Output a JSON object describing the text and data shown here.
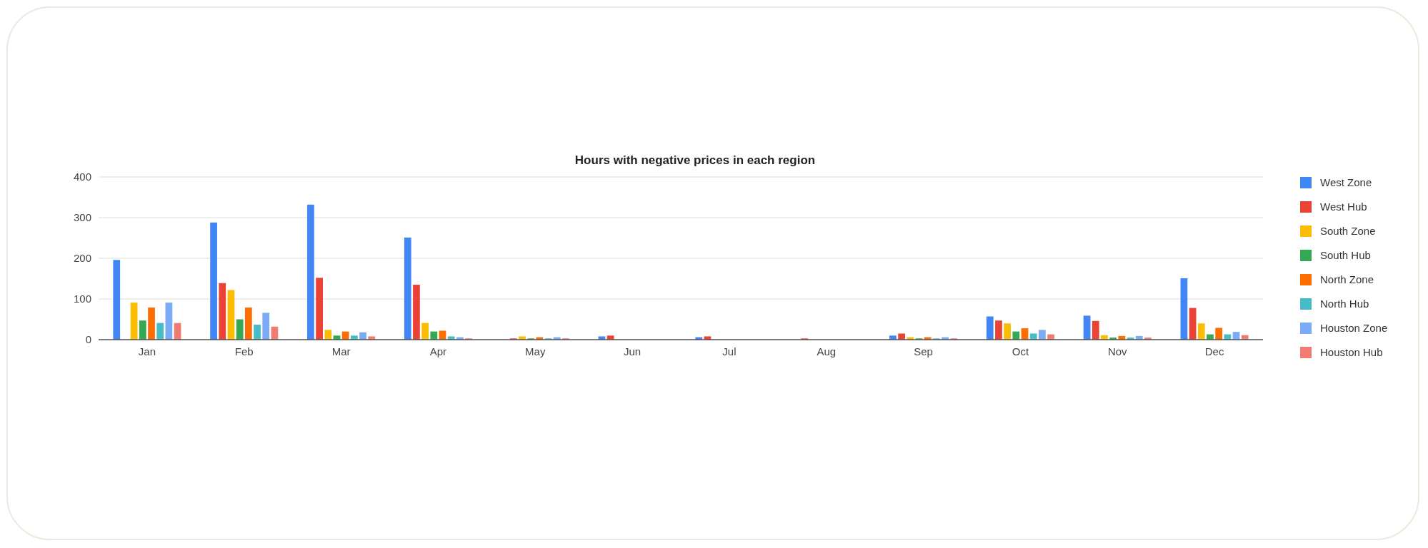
{
  "chart_data": {
    "type": "bar",
    "title": "Hours with negative prices in each region",
    "categories": [
      "Jan",
      "Feb",
      "Mar",
      "Apr",
      "May",
      "Jun",
      "Jul",
      "Aug",
      "Sep",
      "Oct",
      "Nov",
      "Dec"
    ],
    "series": [
      {
        "name": "West Zone",
        "color": "#4285f4",
        "values": [
          196,
          288,
          332,
          251,
          0,
          8,
          6,
          0,
          10,
          57,
          59,
          151
        ]
      },
      {
        "name": "West Hub",
        "color": "#ea4335",
        "values": [
          0,
          139,
          152,
          135,
          3,
          10,
          8,
          3,
          15,
          47,
          46,
          78
        ]
      },
      {
        "name": "South Zone",
        "color": "#fbbc04",
        "values": [
          91,
          122,
          24,
          41,
          8,
          0,
          0,
          0,
          6,
          40,
          11,
          40
        ]
      },
      {
        "name": "South Hub",
        "color": "#34a853",
        "values": [
          47,
          50,
          10,
          20,
          3,
          0,
          0,
          0,
          3,
          20,
          5,
          13
        ]
      },
      {
        "name": "North Zone",
        "color": "#ff6d01",
        "values": [
          79,
          79,
          20,
          22,
          6,
          0,
          0,
          0,
          6,
          28,
          9,
          29
        ]
      },
      {
        "name": "North Hub",
        "color": "#46bdc6",
        "values": [
          41,
          37,
          10,
          8,
          3,
          0,
          0,
          0,
          3,
          15,
          5,
          13
        ]
      },
      {
        "name": "Houston Zone",
        "color": "#7baaf7",
        "values": [
          91,
          66,
          18,
          6,
          6,
          0,
          0,
          0,
          6,
          24,
          9,
          19
        ]
      },
      {
        "name": "Houston Hub",
        "color": "#f07b72",
        "values": [
          41,
          32,
          8,
          3,
          3,
          0,
          0,
          0,
          3,
          13,
          5,
          11
        ]
      }
    ],
    "ylim": [
      0,
      400
    ],
    "yticks": [
      0,
      100,
      200,
      300,
      400
    ],
    "grid": "y",
    "legend": "right"
  }
}
